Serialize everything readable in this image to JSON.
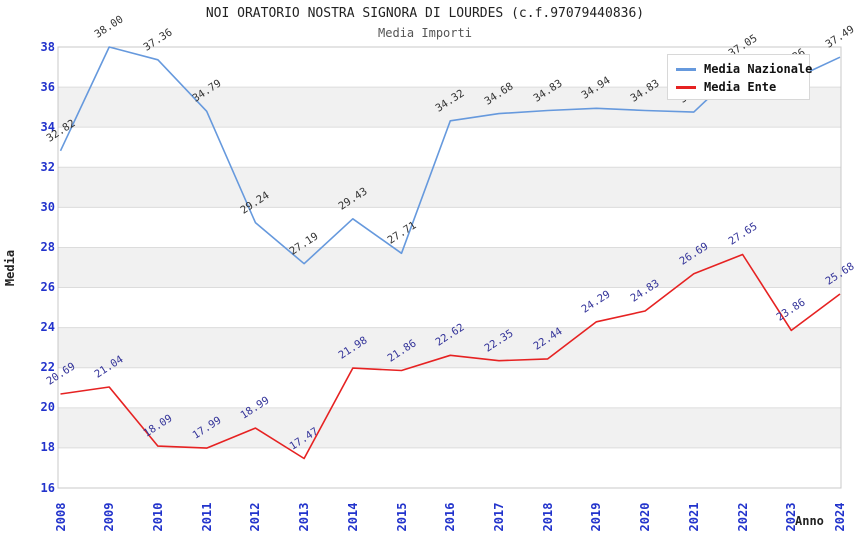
{
  "header": {
    "title": "NOI ORATORIO NOSTRA SIGNORA DI LOURDES (c.f.97079440836)",
    "subtitle": "Media Importi"
  },
  "chart_data": {
    "type": "line",
    "title": "NOI ORATORIO NOSTRA SIGNORA DI LOURDES (c.f.97079440836)",
    "subtitle": "Media Importi",
    "xlabel": "Anno",
    "ylabel": "Media",
    "categories": [
      "2008",
      "2009",
      "2010",
      "2011",
      "2012",
      "2013",
      "2014",
      "2015",
      "2016",
      "2017",
      "2018",
      "2019",
      "2020",
      "2021",
      "2022",
      "2023",
      "2024"
    ],
    "series": [
      {
        "name": "Media Nazionale",
        "color": "#6699dd",
        "label_color": "#333333",
        "values": [
          32.82,
          38.0,
          37.36,
          34.79,
          29.24,
          27.19,
          29.43,
          27.71,
          34.32,
          34.68,
          34.83,
          34.94,
          34.83,
          34.75,
          37.05,
          36.36,
          37.49
        ]
      },
      {
        "name": "Media Ente",
        "color": "#e62222",
        "label_color": "#333399",
        "values": [
          20.69,
          21.04,
          18.09,
          17.99,
          18.99,
          17.47,
          21.98,
          21.86,
          22.62,
          22.35,
          22.44,
          24.29,
          24.83,
          26.69,
          27.65,
          23.86,
          25.68
        ]
      }
    ],
    "ylim": [
      16,
      38
    ],
    "yticks": [
      16,
      18,
      20,
      22,
      24,
      26,
      28,
      30,
      32,
      34,
      36,
      38
    ],
    "grid": "horizontal",
    "band_fill": "#f1f1f1",
    "grid_color": "#dcdcdc",
    "border_color": "#c8c8c8",
    "tick_label_color": "#2233cc",
    "legend_position": "top-right"
  }
}
